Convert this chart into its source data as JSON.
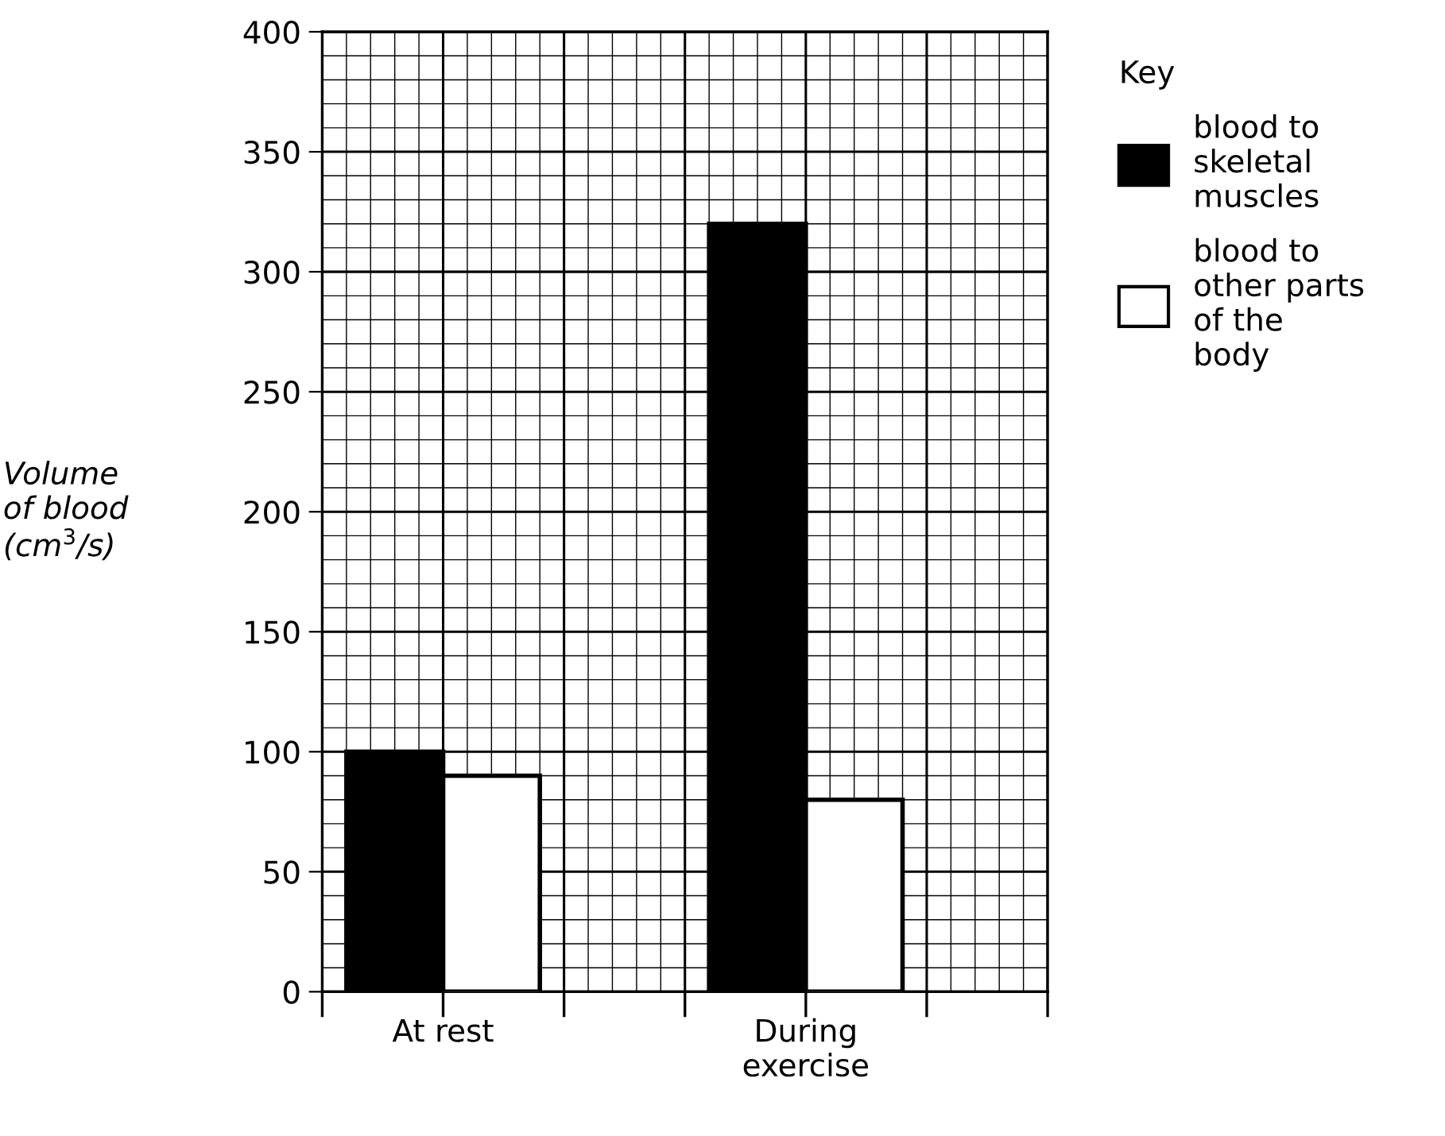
{
  "chart_data": {
    "type": "bar",
    "categories": [
      "At rest",
      "During\nexercise"
    ],
    "series": [
      {
        "name": "blood to\nskeletal\nmuscles",
        "color": "#000000",
        "values": [
          100,
          320
        ]
      },
      {
        "name": "blood to\nother parts\nof the\nbody",
        "color": "#ffffff",
        "values": [
          90,
          80
        ]
      }
    ],
    "ylabel": "Volume\nof blood\n(cm$^{3}$/s)",
    "legend_title": "Key",
    "legend": "top right",
    "ylim": [
      0,
      400
    ],
    "yticks": [
      0,
      50,
      100,
      150,
      200,
      250,
      300,
      350,
      400
    ],
    "grid": true
  }
}
